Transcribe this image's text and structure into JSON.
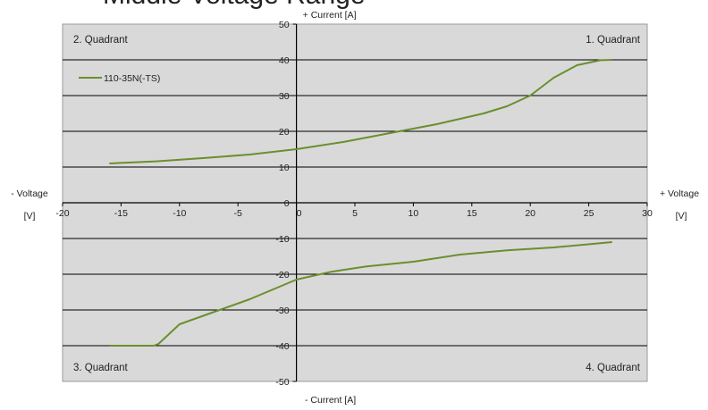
{
  "title": "Middle Voltage Range",
  "chart_data": {
    "type": "line",
    "title": "Middle Voltage Range",
    "axis_labels": {
      "y_top": "+ Current [A]",
      "y_bottom": "- Current [A]",
      "x_left": [
        "- Voltage",
        "[V]"
      ],
      "x_right": [
        "+ Voltage",
        "[V]"
      ]
    },
    "xlim": [
      -20,
      30
    ],
    "ylim": [
      -50,
      50
    ],
    "x_ticks": [
      -20,
      -15,
      -10,
      -5,
      0,
      5,
      10,
      15,
      20,
      25,
      30
    ],
    "y_ticks": [
      -50,
      -40,
      -30,
      -20,
      -10,
      0,
      10,
      20,
      30,
      40,
      50
    ],
    "quadrants": [
      "1. Quadrant",
      "2. Quadrant",
      "3. Quadrant",
      "4. Quadrant"
    ],
    "grid": true,
    "legend_position": "top-left",
    "colors": {
      "plot_bg": "#d9d9d9",
      "series": "#6a8f2e",
      "grid": "#000000"
    },
    "series": [
      {
        "name": "110-35N(-TS)",
        "branch": "upper",
        "x": [
          -16,
          -12,
          -8,
          -4,
          0,
          4,
          8,
          12,
          16,
          18,
          20,
          22,
          24,
          26,
          27
        ],
        "y": [
          11,
          11.6,
          12.5,
          13.5,
          15,
          17,
          19.5,
          22,
          25,
          27,
          30,
          35,
          38.5,
          39.9,
          40
        ]
      },
      {
        "name": "110-35N(-TS)",
        "branch": "lower",
        "x": [
          -16,
          -12.2,
          -11.8,
          -10,
          -7,
          -4,
          0,
          3,
          6,
          10,
          14,
          18,
          22,
          27
        ],
        "y": [
          -40,
          -40,
          -39.5,
          -34,
          -30.5,
          -27,
          -21.5,
          -19.3,
          -17.8,
          -16.5,
          -14.5,
          -13.3,
          -12.5,
          -11
        ]
      }
    ]
  }
}
